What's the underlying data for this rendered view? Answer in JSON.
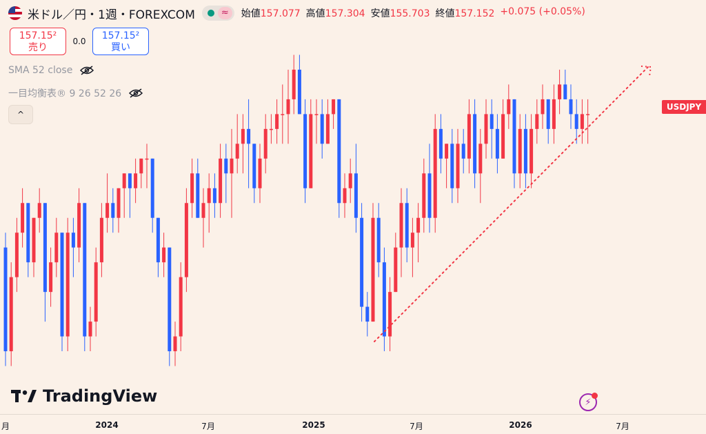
{
  "header": {
    "symbol_title": "米ドル／円・1週・FOREXCOM",
    "approx_icon": "≈",
    "ohlc": [
      {
        "label": "始値",
        "value": "157.077"
      },
      {
        "label": "高値",
        "value": "157.304"
      },
      {
        "label": "安値",
        "value": "155.703"
      },
      {
        "label": "終値",
        "value": "157.152"
      },
      {
        "label": "",
        "value": "+0.075 (+0.05%)"
      }
    ]
  },
  "trade": {
    "sell_price": "157.15²",
    "sell_label": "売り",
    "spread": "0.0",
    "buy_price": "157.15²",
    "buy_label": "買い"
  },
  "indicators": [
    {
      "label": "SMA 52 close"
    },
    {
      "label": "一目均衡表® 9 26 52 26"
    }
  ],
  "collapse_icon": "^",
  "brand": "TradingView",
  "price_tag": "USDJPY",
  "xaxis": [
    {
      "label": "月"
    },
    {
      "label": "2024"
    },
    {
      "label": "7月"
    },
    {
      "label": "2025"
    },
    {
      "label": "7月"
    },
    {
      "label": "2026"
    },
    {
      "label": "7月"
    }
  ],
  "colors": {
    "up": "#f23645",
    "down": "#2962ff",
    "bg": "#fbf1e8"
  },
  "chart_data": {
    "type": "candlestick",
    "symbol": "USDJPY",
    "timeframe": "1W",
    "candles_ohlc": [
      [
        148,
        149,
        140,
        141
      ],
      [
        141,
        147,
        140,
        146
      ],
      [
        146,
        150,
        145,
        149
      ],
      [
        149,
        152,
        148,
        151
      ],
      [
        151,
        151,
        146,
        147
      ],
      [
        147,
        150,
        146,
        150
      ],
      [
        150,
        152,
        149,
        151
      ],
      [
        151,
        151,
        143,
        145
      ],
      [
        145,
        148,
        144,
        147
      ],
      [
        147,
        150,
        146,
        149
      ],
      [
        149,
        149,
        141,
        142
      ],
      [
        142,
        150,
        141,
        149
      ],
      [
        149,
        150,
        146,
        148
      ],
      [
        148,
        152,
        147,
        151
      ],
      [
        151,
        151,
        141,
        142
      ],
      [
        142,
        144,
        141,
        143
      ],
      [
        143,
        148,
        142,
        147
      ],
      [
        147,
        151,
        146,
        150
      ],
      [
        150,
        153,
        149,
        151
      ],
      [
        151,
        152,
        149,
        150
      ],
      [
        150,
        152,
        149,
        152
      ],
      [
        152,
        153,
        150,
        153
      ],
      [
        153,
        153,
        150,
        152
      ],
      [
        152,
        154,
        151,
        153
      ],
      [
        153,
        154,
        152,
        154
      ],
      [
        154,
        155,
        152,
        154
      ],
      [
        154,
        154,
        149,
        150
      ],
      [
        150,
        150,
        146,
        147
      ],
      [
        147,
        149,
        146,
        148
      ],
      [
        148,
        148,
        140,
        141
      ],
      [
        141,
        143,
        140,
        142
      ],
      [
        142,
        147,
        141,
        146
      ],
      [
        146,
        152,
        145,
        151
      ],
      [
        151,
        154,
        150,
        153
      ],
      [
        153,
        154,
        150,
        150
      ],
      [
        150,
        152,
        148,
        151
      ],
      [
        151,
        153,
        149,
        152
      ],
      [
        152,
        153,
        150,
        151
      ],
      [
        151,
        155,
        150,
        154
      ],
      [
        154,
        155,
        151,
        153
      ],
      [
        153,
        156,
        150,
        154
      ],
      [
        154,
        157,
        153,
        155
      ],
      [
        155,
        157,
        153,
        156
      ],
      [
        156,
        158,
        152,
        155
      ],
      [
        155,
        155,
        151,
        152
      ],
      [
        152,
        155,
        151,
        154
      ],
      [
        154,
        157,
        153,
        156
      ],
      [
        156,
        157,
        155,
        156
      ],
      [
        156,
        158,
        155,
        157
      ],
      [
        157,
        159,
        155,
        157
      ],
      [
        157,
        160,
        155,
        158
      ],
      [
        158,
        161,
        157,
        160
      ],
      [
        160,
        161,
        157,
        157
      ],
      [
        157,
        158,
        151,
        152
      ],
      [
        152,
        158,
        152,
        157
      ],
      [
        157,
        158,
        155,
        157
      ],
      [
        157,
        158,
        154,
        155
      ],
      [
        155,
        158,
        155,
        157
      ],
      [
        157,
        158,
        156,
        158
      ],
      [
        158,
        158,
        150,
        151
      ],
      [
        151,
        153,
        150,
        152
      ],
      [
        152,
        154,
        151,
        153
      ],
      [
        153,
        155,
        149,
        150
      ],
      [
        150,
        151,
        143,
        144
      ],
      [
        144,
        145,
        142,
        143
      ],
      [
        143,
        151,
        143,
        150
      ],
      [
        150,
        151,
        146,
        147
      ],
      [
        147,
        148,
        141,
        142
      ],
      [
        142,
        146,
        141,
        145
      ],
      [
        145,
        149,
        145,
        148
      ],
      [
        148,
        152,
        146,
        151
      ],
      [
        151,
        152,
        147,
        148
      ],
      [
        148,
        150,
        146,
        149
      ],
      [
        149,
        151,
        147,
        150
      ],
      [
        150,
        154,
        149,
        153
      ],
      [
        153,
        155,
        149,
        150
      ],
      [
        150,
        157,
        149,
        156
      ],
      [
        156,
        157,
        153,
        154
      ],
      [
        154,
        155,
        152,
        155
      ],
      [
        155,
        156,
        151,
        152
      ],
      [
        152,
        156,
        151,
        155
      ],
      [
        155,
        156,
        153,
        154
      ],
      [
        154,
        158,
        153,
        157
      ],
      [
        157,
        158,
        152,
        153
      ],
      [
        153,
        156,
        151,
        155
      ],
      [
        155,
        158,
        154,
        157
      ],
      [
        157,
        158,
        154,
        156
      ],
      [
        156,
        157,
        153,
        154
      ],
      [
        154,
        158,
        154,
        157
      ],
      [
        157,
        159,
        156,
        158
      ],
      [
        158,
        158,
        152,
        153
      ],
      [
        153,
        157,
        152,
        156
      ],
      [
        156,
        157,
        152,
        153
      ],
      [
        153,
        157,
        152,
        156
      ],
      [
        156,
        158,
        155,
        157
      ],
      [
        157,
        159,
        156,
        158
      ],
      [
        158,
        158,
        155,
        156
      ],
      [
        156,
        159,
        155,
        158
      ],
      [
        158,
        160,
        157,
        159
      ],
      [
        159,
        160,
        158,
        158
      ],
      [
        158,
        159,
        156,
        157
      ],
      [
        157,
        158,
        155,
        156
      ],
      [
        156,
        158,
        155,
        157
      ],
      [
        157,
        158,
        155,
        157
      ]
    ],
    "trendline": "dotted, rising from the 2025 spring low through the 2026 lows, extended to the right",
    "grid": false,
    "legend": "none"
  }
}
